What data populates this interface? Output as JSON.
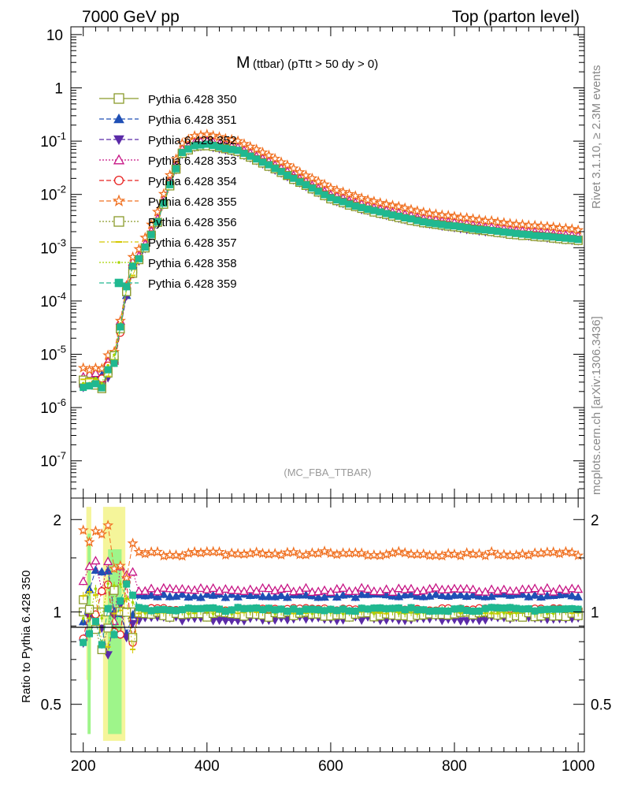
{
  "header": {
    "left": "7000 GeV pp",
    "right": "Top (parton level)"
  },
  "side": {
    "rivet": "Rivet 3.1.10, ≥ 2.3M events",
    "mcplots": "mcplots.cern.ch [arXiv:1306.3436]"
  },
  "chart_data": {
    "type": "line",
    "title_main": "M",
    "title_sub": "(ttbar) (pTtt > 50 dy > 0)",
    "watermark": "(MC_FBA_TTBAR)",
    "ylabel_ratio": "Ratio to Pythia 6.428 350",
    "xlim": [
      180,
      1010
    ],
    "ylim_main": [
      2e-08,
      14
    ],
    "ylim_ratio": [
      0.35,
      2.35
    ],
    "y_scale_main": "log",
    "y_scale_ratio": "log",
    "x_ticks": [
      "200",
      "400",
      "600",
      "800",
      "1000"
    ],
    "y_ticks_main": [
      "10",
      "1",
      "10^-1",
      "10^-2",
      "10^-3",
      "10^-4",
      "10^-5",
      "10^-6",
      "10^-7"
    ],
    "y_ticks_ratio": [
      "2",
      "1",
      "0.5"
    ],
    "legend_position": "top-left",
    "reference": {
      "name": "Pythia 6.428 350",
      "x": [
        200,
        230,
        240,
        250,
        260,
        270,
        280,
        290,
        300,
        320,
        340,
        360,
        380,
        400,
        450,
        500,
        550,
        600,
        650,
        700,
        750,
        800,
        850,
        900,
        950,
        1000
      ],
      "y": [
        3e-06,
        3e-06,
        5e-06,
        8e-06,
        3e-05,
        0.00015,
        0.0004,
        0.0006,
        0.001,
        0.003,
        0.015,
        0.06,
        0.08,
        0.085,
        0.065,
        0.035,
        0.017,
        0.0085,
        0.0055,
        0.004,
        0.003,
        0.0025,
        0.0021,
        0.0018,
        0.0016,
        0.0014
      ]
    },
    "series": [
      {
        "name": "Pythia 6.428 350",
        "color": "#8a9a2b",
        "marker": "open-square",
        "dash": "solid",
        "ratio": 1.0,
        "wiggle": 0.0
      },
      {
        "name": "Pythia 6.428 351",
        "color": "#1f4fb5",
        "marker": "filled-triangle-up",
        "dash": "dashed",
        "ratio": 1.13,
        "wiggle": 0.015
      },
      {
        "name": "Pythia 6.428 352",
        "color": "#5b2aa8",
        "marker": "filled-triangle-down",
        "dash": "dashed",
        "ratio": 0.95,
        "wiggle": 0.015
      },
      {
        "name": "Pythia 6.428 353",
        "color": "#c71585",
        "marker": "open-triangle-up",
        "dash": "dotted",
        "ratio": 1.18,
        "wiggle": 0.02
      },
      {
        "name": "Pythia 6.428 354",
        "color": "#e8201f",
        "marker": "open-circle",
        "dash": "dashed",
        "ratio": 1.02,
        "wiggle": 0.01
      },
      {
        "name": "Pythia 6.428 355",
        "color": "#f07020",
        "marker": "open-star",
        "dash": "dashed",
        "ratio": 1.55,
        "wiggle": 0.03
      },
      {
        "name": "Pythia 6.428 356",
        "color": "#8a9a2b",
        "marker": "open-square",
        "dash": "dotted",
        "ratio": 0.98,
        "wiggle": 0.02
      },
      {
        "name": "Pythia 6.428 357",
        "color": "#d4c800",
        "marker": "dash",
        "dash": "dashdot",
        "ratio": 1.0,
        "wiggle": 0.015
      },
      {
        "name": "Pythia 6.428 358",
        "color": "#a8d400",
        "marker": "dot",
        "dash": "dotted",
        "ratio": 1.0,
        "wiggle": 0.015
      },
      {
        "name": "Pythia 6.428 359",
        "color": "#20b890",
        "marker": "filled-square",
        "dash": "dashed",
        "ratio": 1.02,
        "wiggle": 0.015
      }
    ],
    "colors": {
      "band_green": "#9ef58a",
      "band_yellow": "#f5f59a"
    }
  }
}
